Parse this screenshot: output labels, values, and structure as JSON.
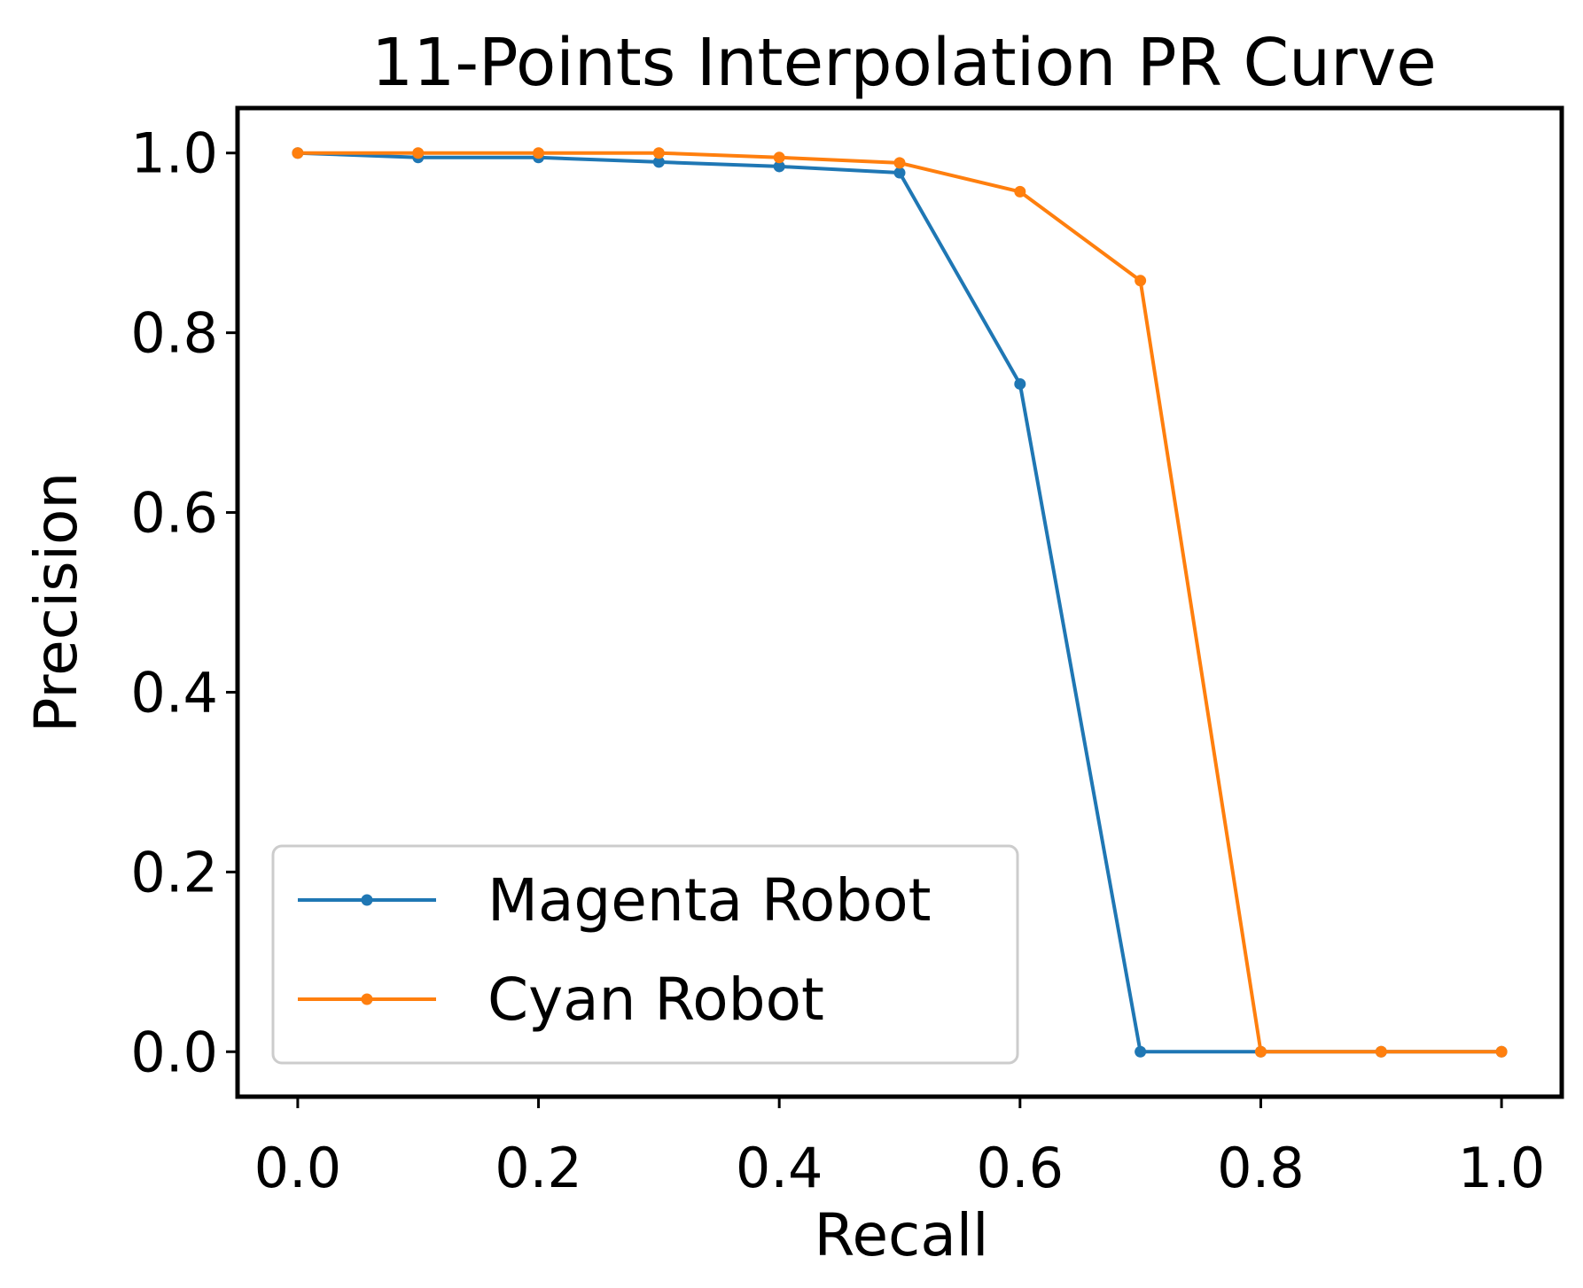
{
  "chart_data": {
    "type": "line",
    "title": "11-Points Interpolation PR Curve",
    "xlabel": "Recall",
    "ylabel": "Precision",
    "xlim": [
      -0.05,
      1.05
    ],
    "ylim": [
      -0.05,
      1.05
    ],
    "xticks": [
      "0.0",
      "0.2",
      "0.4",
      "0.6",
      "0.8",
      "1.0"
    ],
    "yticks": [
      "0.0",
      "0.2",
      "0.4",
      "0.6",
      "0.8",
      "1.0"
    ],
    "grid": false,
    "legend_position": "lower-left",
    "x": [
      0.0,
      0.1,
      0.2,
      0.3,
      0.4,
      0.5,
      0.6,
      0.7,
      0.8,
      0.9,
      1.0
    ],
    "series": [
      {
        "name": "Magenta Robot",
        "color": "#1f77b4",
        "values": [
          1.0,
          0.995,
          0.995,
          0.99,
          0.985,
          0.978,
          0.743,
          0.0,
          0.0,
          0.0,
          0.0
        ]
      },
      {
        "name": "Cyan Robot",
        "color": "#ff7f0e",
        "values": [
          1.0,
          1.0,
          1.0,
          1.0,
          0.995,
          0.989,
          0.957,
          0.858,
          0.0,
          0.0,
          0.0
        ]
      }
    ]
  }
}
